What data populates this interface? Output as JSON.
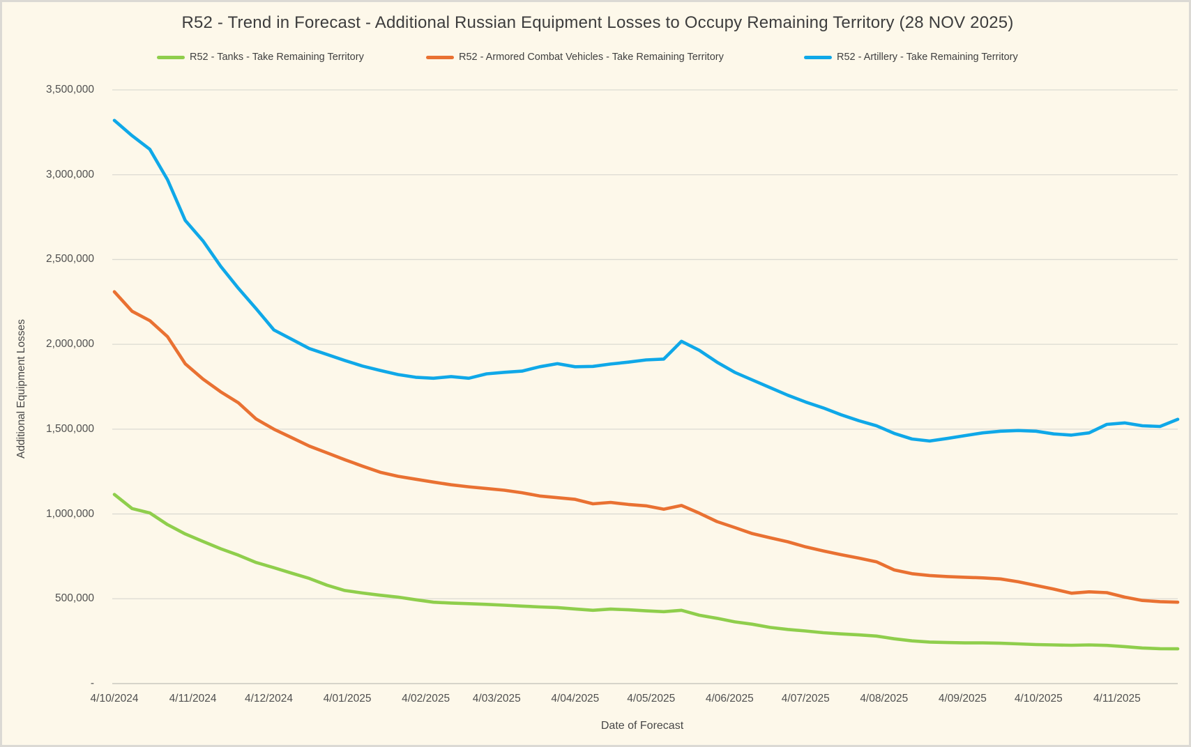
{
  "window": {
    "background": "#FDF8EA",
    "frame_border": "#DBD9D4"
  },
  "title": "R52 - Trend in Forecast - Additional Russian Equipment Losses to Occupy Remaining Territory (28 NOV 2025)",
  "legend": {
    "position": "top",
    "items": [
      {
        "label": "R52 - Tanks - Take Remaining Territory",
        "color": "#8FCE4C"
      },
      {
        "label": "R52 - Armored Combat Vehicles - Take Remaining Territory",
        "color": "#E97132"
      },
      {
        "label": "R52 - Artillery - Take Remaining Territory",
        "color": "#0FA8E8"
      }
    ]
  },
  "y_axis": {
    "title": "Additional Equipment Losses",
    "ticks": [
      {
        "label": "-",
        "value": 0
      },
      {
        "label": "500,000",
        "value": 500000
      },
      {
        "label": "1,000,000",
        "value": 1000000
      },
      {
        "label": "1,500,000",
        "value": 1500000
      },
      {
        "label": "2,000,000",
        "value": 2000000
      },
      {
        "label": "2,500,000",
        "value": 2500000
      },
      {
        "label": "3,000,000",
        "value": 3000000
      },
      {
        "label": "3,500,000",
        "value": 3500000
      }
    ]
  },
  "x_axis": {
    "title": "Date of Forecast",
    "labels": [
      {
        "label": "4/10/2024",
        "day": 0
      },
      {
        "label": "4/11/2024",
        "day": 31
      },
      {
        "label": "4/12/2024",
        "day": 61
      },
      {
        "label": "4/01/2025",
        "day": 92
      },
      {
        "label": "4/02/2025",
        "day": 123
      },
      {
        "label": "4/03/2025",
        "day": 151
      },
      {
        "label": "4/04/2025",
        "day": 182
      },
      {
        "label": "4/05/2025",
        "day": 212
      },
      {
        "label": "4/06/2025",
        "day": 243
      },
      {
        "label": "4/07/2025",
        "day": 273
      },
      {
        "label": "4/08/2025",
        "day": 304
      },
      {
        "label": "4/09/2025",
        "day": 335
      },
      {
        "label": "4/10/2025",
        "day": 365
      },
      {
        "label": "4/11/2025",
        "day": 396
      }
    ]
  },
  "chart_data": {
    "type": "line",
    "title": "R52 - Trend in Forecast - Additional Russian Equipment Losses to Occupy Remaining Territory (28 NOV 2025)",
    "xlabel": "Date of Forecast",
    "ylabel": "Additional Equipment Losses",
    "ylim": [
      0,
      3500000
    ],
    "grid": "horizontal",
    "legend_position": "top",
    "x_interval_days": 7,
    "x_total_days": 420,
    "x_dates": [
      "10/4/2024",
      "10/11/2024",
      "10/18/2024",
      "10/25/2024",
      "11/1/2024",
      "11/8/2024",
      "11/15/2024",
      "11/22/2024",
      "11/29/2024",
      "12/6/2024",
      "12/13/2024",
      "12/20/2024",
      "12/27/2024",
      "1/3/2025",
      "1/10/2025",
      "1/17/2025",
      "1/24/2025",
      "1/31/2025",
      "2/7/2025",
      "2/14/2025",
      "2/21/2025",
      "2/28/2025",
      "3/7/2025",
      "3/14/2025",
      "3/21/2025",
      "3/28/2025",
      "4/4/2025",
      "4/11/2025",
      "4/18/2025",
      "4/25/2025",
      "5/2/2025",
      "5/9/2025",
      "5/16/2025",
      "5/23/2025",
      "5/30/2025",
      "6/6/2025",
      "6/13/2025",
      "6/20/2025",
      "6/27/2025",
      "7/4/2025",
      "7/11/2025",
      "7/18/2025",
      "7/25/2025",
      "8/1/2025",
      "8/8/2025",
      "8/15/2025",
      "8/22/2025",
      "8/29/2025",
      "9/5/2025",
      "9/12/2025",
      "9/19/2025",
      "9/26/2025",
      "10/3/2025",
      "10/10/2025",
      "10/17/2025",
      "10/24/2025",
      "10/31/2025",
      "11/7/2025",
      "11/14/2025",
      "11/21/2025",
      "11/28/2025"
    ],
    "series": [
      {
        "name": "R52 - Tanks - Take Remaining Territory",
        "color": "#8FCE4C",
        "values": [
          1115000,
          1032000,
          1006000,
          937000,
          882000,
          838000,
          795000,
          757000,
          714000,
          683000,
          651000,
          620000,
          580000,
          549000,
          534000,
          521000,
          510000,
          494000,
          480000,
          475000,
          471000,
          467000,
          462000,
          457000,
          452000,
          448000,
          440000,
          432000,
          439000,
          435000,
          429000,
          424000,
          432000,
          403000,
          385000,
          364000,
          350000,
          331000,
          319000,
          310000,
          300000,
          293000,
          287000,
          280000,
          264000,
          252000,
          245000,
          242000,
          240000,
          240000,
          238000,
          234000,
          230000,
          228000,
          226000,
          228000,
          225000,
          218000,
          210000,
          206000,
          205000
        ]
      },
      {
        "name": "R52 - Armored Combat Vehicles - Take Remaining Territory",
        "color": "#E97132",
        "values": [
          2310000,
          2195000,
          2140000,
          2045000,
          1885000,
          1795000,
          1720000,
          1655000,
          1560000,
          1500000,
          1450000,
          1400000,
          1360000,
          1320000,
          1282000,
          1246000,
          1222000,
          1205000,
          1188000,
          1172000,
          1160000,
          1150000,
          1140000,
          1125000,
          1106000,
          1096000,
          1086000,
          1060000,
          1068000,
          1056000,
          1048000,
          1028000,
          1050000,
          1005000,
          955000,
          920000,
          884000,
          860000,
          836000,
          806000,
          782000,
          760000,
          740000,
          718000,
          670000,
          648000,
          637000,
          631000,
          627000,
          623000,
          617000,
          600000,
          579000,
          557000,
          533000,
          541000,
          536000,
          510000,
          490000,
          483000,
          480000
        ]
      },
      {
        "name": "R52 - Artillery - Take Remaining Territory",
        "color": "#0FA8E8",
        "values": [
          3320000,
          3230000,
          3150000,
          2970000,
          2730000,
          2610000,
          2460000,
          2330000,
          2210000,
          2085000,
          2030000,
          1975000,
          1940000,
          1905000,
          1872000,
          1846000,
          1822000,
          1806000,
          1800000,
          1810000,
          1800000,
          1826000,
          1835000,
          1842000,
          1868000,
          1886000,
          1868000,
          1870000,
          1884000,
          1895000,
          1908000,
          1913000,
          2018000,
          1965000,
          1895000,
          1835000,
          1790000,
          1745000,
          1700000,
          1660000,
          1625000,
          1585000,
          1550000,
          1520000,
          1475000,
          1442000,
          1430000,
          1445000,
          1462000,
          1478000,
          1488000,
          1492000,
          1488000,
          1472000,
          1465000,
          1478000,
          1528000,
          1537000,
          1520000,
          1516000,
          1558000
        ]
      }
    ]
  }
}
